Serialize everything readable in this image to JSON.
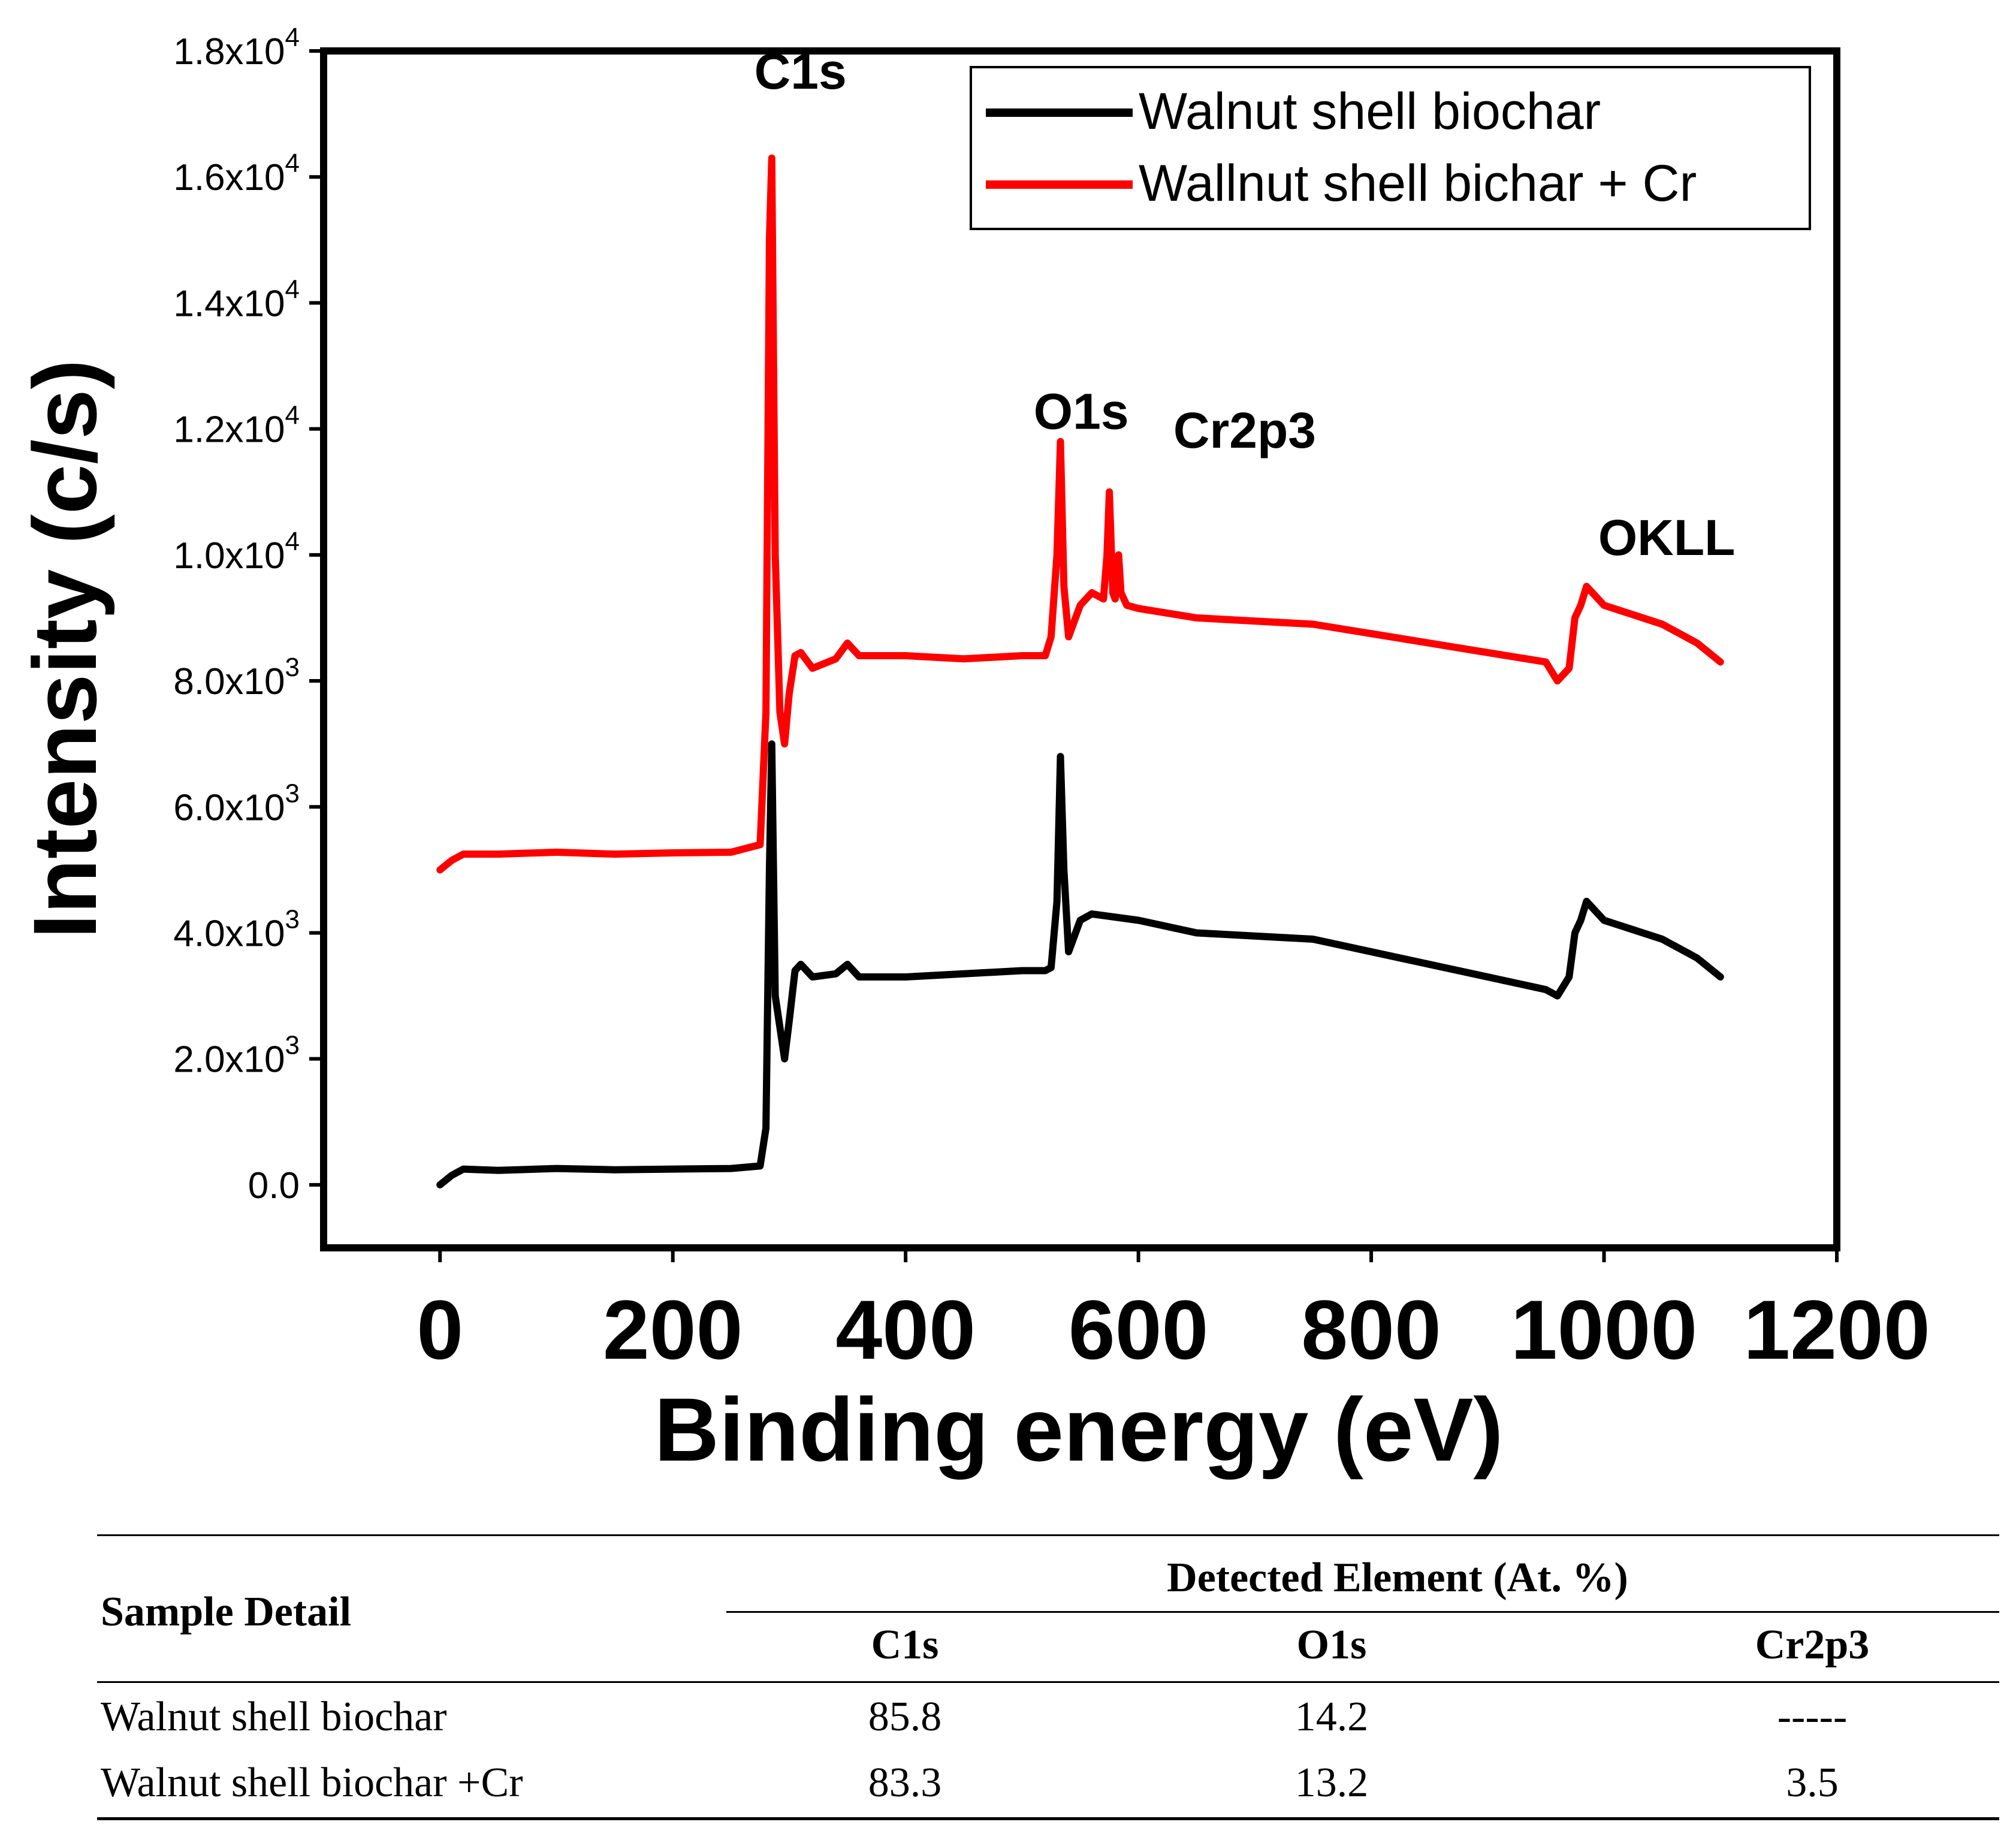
{
  "chart_data": {
    "type": "line",
    "xlabel": "Binding energy (eV)",
    "ylabel": "Intensity (c/s)",
    "xlim": [
      -100,
      1200
    ],
    "ylim": [
      -1000,
      18000
    ],
    "grid": false,
    "legend_position": "top-right",
    "x_ticks": [
      0,
      200,
      400,
      600,
      800,
      1000,
      1200
    ],
    "x_tick_labels": [
      "0",
      "200",
      "400",
      "600",
      "800",
      "1000",
      "1200"
    ],
    "y_ticks": [
      {
        "value": 0,
        "mantissa": "0.0",
        "exp": ""
      },
      {
        "value": 2000,
        "mantissa": "2.0x10",
        "exp": "3"
      },
      {
        "value": 4000,
        "mantissa": "4.0x10",
        "exp": "3"
      },
      {
        "value": 6000,
        "mantissa": "6.0x10",
        "exp": "3"
      },
      {
        "value": 8000,
        "mantissa": "8.0x10",
        "exp": "3"
      },
      {
        "value": 10000,
        "mantissa": "1.0x10",
        "exp": "4"
      },
      {
        "value": 12000,
        "mantissa": "1.2x10",
        "exp": "4"
      },
      {
        "value": 14000,
        "mantissa": "1.4x10",
        "exp": "4"
      },
      {
        "value": 16000,
        "mantissa": "1.6x10",
        "exp": "4"
      },
      {
        "value": 18000,
        "mantissa": "1.8x10",
        "exp": "4"
      }
    ],
    "series": [
      {
        "name": "Walnut shell biochar",
        "color": "#000000",
        "x": [
          0,
          10,
          20,
          50,
          100,
          150,
          200,
          250,
          275,
          280,
          283,
          285,
          288,
          292,
          296,
          300,
          305,
          310,
          320,
          340,
          350,
          360,
          400,
          450,
          500,
          520,
          525,
          530,
          533,
          536,
          540,
          550,
          560,
          600,
          650,
          700,
          750,
          800,
          850,
          900,
          950,
          960,
          970,
          975,
          980,
          985,
          1000,
          1050,
          1080,
          1100
        ],
        "values": [
          0,
          150,
          250,
          230,
          260,
          240,
          250,
          260,
          300,
          900,
          5000,
          7000,
          3000,
          2500,
          2000,
          2600,
          3400,
          3500,
          3300,
          3350,
          3500,
          3300,
          3300,
          3350,
          3400,
          3400,
          3450,
          4500,
          6800,
          5000,
          3700,
          4200,
          4300,
          4200,
          4000,
          3950,
          3900,
          3700,
          3500,
          3300,
          3100,
          3000,
          3300,
          4000,
          4200,
          4500,
          4200,
          3900,
          3600,
          3300
        ]
      },
      {
        "name": "Wallnut shell bichar + Cr",
        "color": "#ff0000",
        "x": [
          0,
          10,
          20,
          50,
          100,
          150,
          200,
          250,
          275,
          280,
          283,
          285,
          288,
          292,
          296,
          300,
          305,
          310,
          320,
          340,
          350,
          360,
          400,
          450,
          500,
          520,
          525,
          530,
          533,
          536,
          540,
          550,
          560,
          570,
          573,
          575,
          578,
          580,
          583,
          585,
          590,
          600,
          650,
          700,
          750,
          800,
          850,
          900,
          950,
          960,
          970,
          975,
          980,
          985,
          1000,
          1050,
          1080,
          1100
        ],
        "values": [
          5000,
          5150,
          5250,
          5250,
          5280,
          5250,
          5270,
          5280,
          5400,
          7500,
          15000,
          16300,
          10000,
          7500,
          7000,
          7800,
          8400,
          8450,
          8200,
          8350,
          8600,
          8400,
          8400,
          8350,
          8400,
          8400,
          8700,
          10000,
          11800,
          9500,
          8700,
          9200,
          9400,
          9300,
          10000,
          11000,
          9400,
          9300,
          10000,
          9400,
          9200,
          9150,
          9000,
          8950,
          8900,
          8750,
          8600,
          8450,
          8300,
          8000,
          8200,
          9000,
          9200,
          9500,
          9200,
          8900,
          8600,
          8300
        ]
      }
    ],
    "annotations": [
      {
        "text": "C1s",
        "x": 270,
        "y": 17400
      },
      {
        "text": "O1s",
        "x": 510,
        "y": 12000
      },
      {
        "text": "Cr2p3",
        "x": 630,
        "y": 11700
      },
      {
        "text": "OKLL",
        "x": 995,
        "y": 10000
      }
    ]
  },
  "table": {
    "header_sample": "Sample Detail",
    "header_group": "Detected Element (At. %)",
    "columns": [
      "C1s",
      "O1s",
      "Cr2p3"
    ],
    "rows": [
      {
        "sample": "Walnut shell biochar",
        "c1s": "85.8",
        "o1s": "14.2",
        "cr2p3": "-----"
      },
      {
        "sample": "Walnut shell biochar +Cr",
        "c1s": "83.3",
        "o1s": "13.2",
        "cr2p3": "3.5"
      }
    ]
  }
}
